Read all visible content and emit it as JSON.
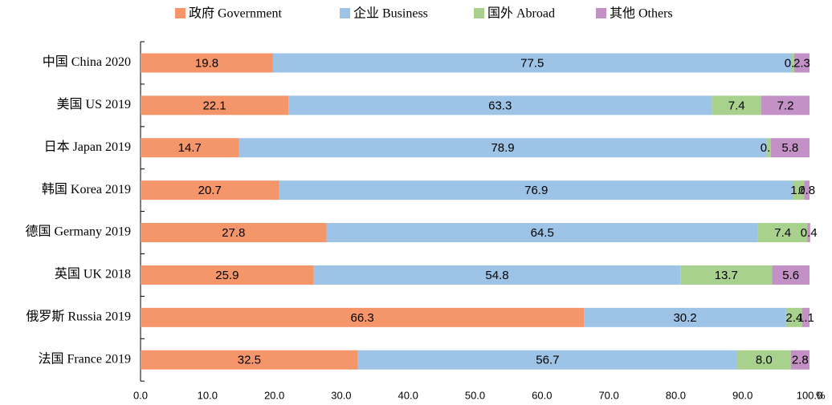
{
  "chart_data": {
    "type": "stacked_barh",
    "categories": [
      "中国 China 2020",
      "美国 US 2019",
      "日本 Japan 2019",
      "韩国 Korea 2019",
      "德国 Germany 2019",
      "英国 UK 2018",
      "俄罗斯 Russia 2019",
      "法国 France 2019"
    ],
    "series": [
      {
        "name": "政府 Government",
        "color": "#f4956a",
        "values": [
          19.8,
          22.1,
          14.7,
          20.7,
          27.8,
          25.9,
          66.3,
          32.5
        ]
      },
      {
        "name": "企业 Business",
        "color": "#9dc3e6",
        "values": [
          77.5,
          63.3,
          78.9,
          76.9,
          64.5,
          54.8,
          30.2,
          56.7
        ]
      },
      {
        "name": "国外 Abroad",
        "color": "#a9d18e",
        "values": [
          0.4,
          7.4,
          0.6,
          1.6,
          7.4,
          13.7,
          2.4,
          8.0
        ],
        "value_labels": [
          "0.4",
          "7.4",
          "0.6",
          "1.6",
          "7.4",
          "13.7",
          "2.4",
          "8.0"
        ]
      },
      {
        "name": "其他 Others",
        "color": "#c391c6",
        "values": [
          2.3,
          7.2,
          5.8,
          0.8,
          0.4,
          5.6,
          1.1,
          2.8
        ]
      }
    ],
    "xlim": [
      0,
      100
    ],
    "xticks": [
      {
        "value": 0,
        "label": "0.0"
      },
      {
        "value": 10,
        "label": "10.0"
      },
      {
        "value": 20,
        "label": "20.0"
      },
      {
        "value": 30,
        "label": "30.0"
      },
      {
        "value": 40,
        "label": "40.0"
      },
      {
        "value": 50,
        "label": "50.0"
      },
      {
        "value": 60,
        "label": "60.0"
      },
      {
        "value": 70,
        "label": "70.0"
      },
      {
        "value": 80,
        "label": "80.0"
      },
      {
        "value": 90,
        "label": "90.0"
      },
      {
        "value": 100,
        "label": "100.0"
      }
    ],
    "xlabel": "%",
    "legend": "top"
  }
}
